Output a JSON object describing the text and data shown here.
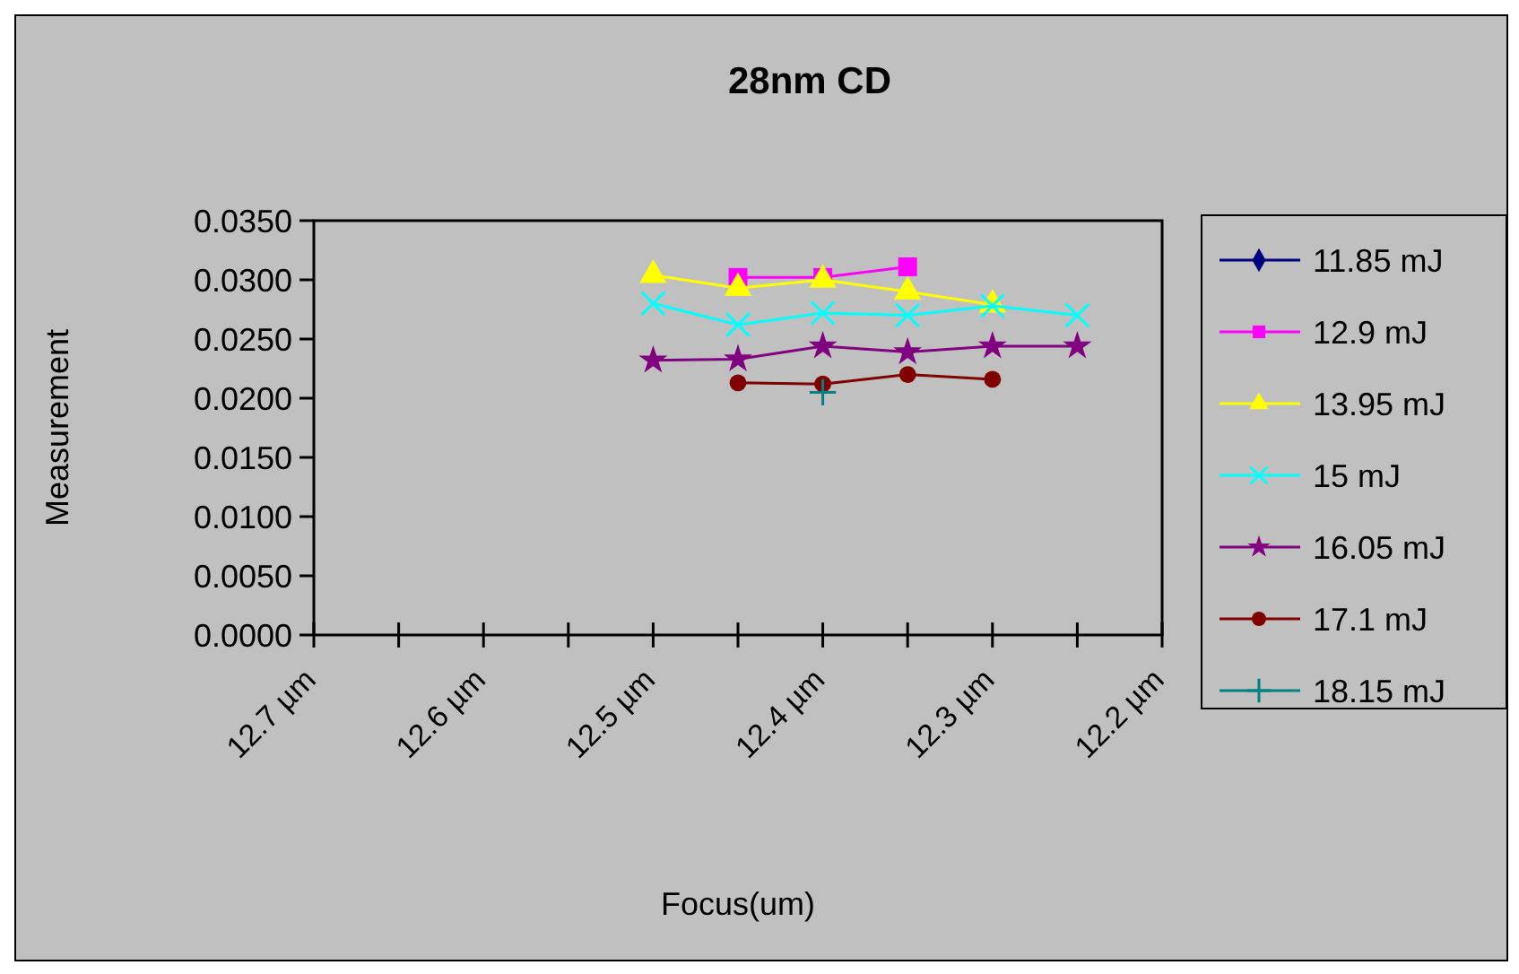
{
  "chart_data": {
    "type": "line",
    "title": "28nm CD",
    "xlabel": "Focus(um)",
    "ylabel": "Measurement",
    "x": [
      12.5,
      12.45,
      12.4,
      12.35,
      12.3,
      12.25
    ],
    "xlim": [
      12.7,
      12.2
    ],
    "xticks": [
      {
        "value": 12.7,
        "label": "12.7 µm"
      },
      {
        "value": 12.65,
        "label": null
      },
      {
        "value": 12.6,
        "label": "12.6 µm"
      },
      {
        "value": 12.55,
        "label": null
      },
      {
        "value": 12.5,
        "label": "12.5 µm"
      },
      {
        "value": 12.45,
        "label": null
      },
      {
        "value": 12.4,
        "label": "12.4 µm"
      },
      {
        "value": 12.35,
        "label": null
      },
      {
        "value": 12.3,
        "label": "12.3 µm"
      },
      {
        "value": 12.25,
        "label": null
      },
      {
        "value": 12.2,
        "label": "12.2 µm"
      }
    ],
    "ylim": [
      0,
      0.035
    ],
    "yticks": [
      {
        "value": 0,
        "label": "0.0000"
      },
      {
        "value": 0.005,
        "label": "0.0050"
      },
      {
        "value": 0.01,
        "label": "0.0100"
      },
      {
        "value": 0.015,
        "label": "0.0150"
      },
      {
        "value": 0.02,
        "label": "0.0200"
      },
      {
        "value": 0.025,
        "label": "0.0250"
      },
      {
        "value": 0.03,
        "label": "0.0300"
      },
      {
        "value": 0.035,
        "label": "0.0350"
      }
    ],
    "grid": false,
    "legend": "right",
    "series": [
      {
        "name": "11.85 mJ",
        "color": "#000080",
        "marker": "diamond",
        "values": [
          null,
          null,
          null,
          null,
          null,
          null
        ]
      },
      {
        "name": "12.9 mJ",
        "color": "#ff00ff",
        "marker": "square",
        "values": [
          null,
          0.0302,
          0.0302,
          0.0311,
          null,
          null
        ]
      },
      {
        "name": "13.95 mJ",
        "color": "#ffff00",
        "marker": "triangle",
        "values": [
          0.0304,
          0.0293,
          0.03,
          0.029,
          0.0279,
          null
        ]
      },
      {
        "name": "15 mJ",
        "color": "#00ffff",
        "marker": "cross",
        "values": [
          0.028,
          0.0262,
          0.0272,
          0.027,
          0.0278,
          0.027
        ]
      },
      {
        "name": "16.05 mJ",
        "color": "#800080",
        "marker": "star",
        "values": [
          0.0232,
          0.0233,
          0.0244,
          0.0239,
          0.0244,
          0.0244
        ]
      },
      {
        "name": "17.1 mJ",
        "color": "#800000",
        "marker": "circle",
        "values": [
          null,
          0.0213,
          0.0212,
          0.022,
          0.0216,
          null
        ]
      },
      {
        "name": "18.15 mJ",
        "color": "#008080",
        "marker": "plus",
        "values": [
          null,
          null,
          0.0205,
          null,
          null,
          null
        ]
      }
    ]
  }
}
